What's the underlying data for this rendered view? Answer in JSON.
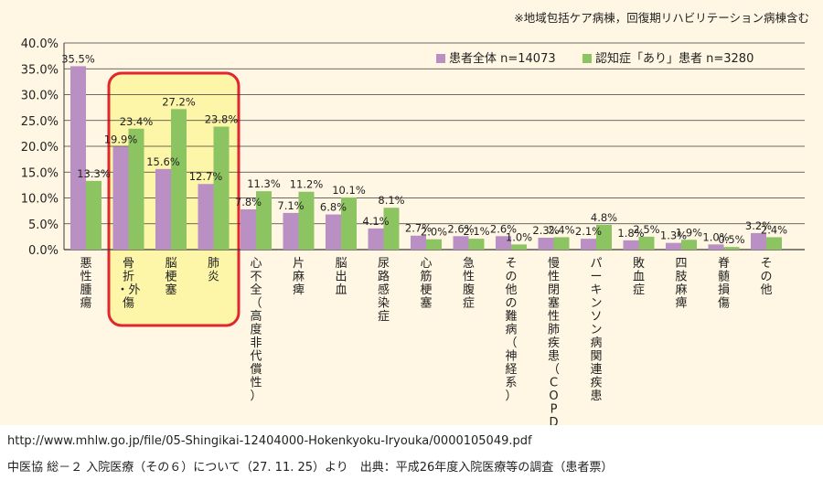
{
  "note": "※地域包括ケア病棟，回復期リハビリテーション病棟含む",
  "footer": {
    "url": "http://www.mhlw.go.jp/file/05-Shingikai-12404000-Hokenkyoku-Iryouka/0000105049.pdf",
    "source": "中医協 総－２ 入院医療（その６）について（27. 11. 25）より　出典：平成26年度入院医療等の調査（患者票）"
  },
  "colors": {
    "series_all": "#b98fc4",
    "series_dementia": "#8dc462",
    "panel_bg": "#fff7e3",
    "highlight_fill": "#fdf5a8",
    "highlight_border": "#e2262d",
    "grid": "#3a3a3a"
  },
  "chart_data": {
    "type": "bar",
    "categories": [
      "悪性腫瘍",
      "骨折・外傷",
      "脳梗塞",
      "肺炎",
      "心不全（高度非代償性）",
      "片麻痺",
      "脳出血",
      "尿路感染症",
      "心筋梗塞",
      "急性腹症",
      "その他の難病（神経系）",
      "慢性閉塞性肺疾患（COPD）",
      "パーキンソン病関連疾患",
      "敗血症",
      "四肢麻痺",
      "脊髄損傷",
      "その他"
    ],
    "category_lines": [
      [
        "悪",
        "性",
        "腫",
        "瘍"
      ],
      [
        "骨",
        "折",
        "・外",
        "傷"
      ],
      [
        "脳",
        "梗",
        "塞"
      ],
      [
        "肺",
        "炎"
      ],
      [
        "心",
        "不",
        "全",
        "（",
        "高",
        "度",
        "非",
        "代",
        "償",
        "性",
        "）"
      ],
      [
        "片",
        "麻",
        "痺"
      ],
      [
        "脳",
        "出",
        "血"
      ],
      [
        "尿",
        "路",
        "感",
        "染",
        "症"
      ],
      [
        "心",
        "筋",
        "梗",
        "塞"
      ],
      [
        "急",
        "性",
        "腹",
        "症"
      ],
      [
        "そ",
        "の",
        "他",
        "の",
        "難",
        "病",
        "（",
        "神",
        "経",
        "系",
        "）"
      ],
      [
        "慢",
        "性",
        "閉",
        "塞",
        "性",
        "肺",
        "疾",
        "患",
        "（",
        "C",
        "O",
        "P",
        "D",
        "）"
      ],
      [
        "パ",
        "ー",
        "キ",
        "ン",
        "ソ",
        "ン",
        "病",
        "関",
        "連",
        "疾",
        "患"
      ],
      [
        "敗",
        "血",
        "症"
      ],
      [
        "四",
        "肢",
        "麻",
        "痺"
      ],
      [
        "脊",
        "髄",
        "損",
        "傷"
      ],
      [
        "そ",
        "の",
        "他"
      ]
    ],
    "series": [
      {
        "name": "患者全体 n=14073",
        "values": [
          35.5,
          19.9,
          15.6,
          12.7,
          7.8,
          7.1,
          6.8,
          4.1,
          2.7,
          2.6,
          2.6,
          2.3,
          2.1,
          1.8,
          1.3,
          1.0,
          3.2
        ],
        "labels": [
          "35.5%",
          "19.9%",
          "15.6%",
          "12.7%",
          "7.8%",
          "7.1%",
          "6.8%",
          "4.1%",
          "2.7%",
          "2.6%",
          "2.6%",
          "2.3%",
          "2.1%",
          "1.8%",
          "1.3%",
          "1.0%",
          "3.2%"
        ]
      },
      {
        "name": "認知症「あり」患者 n=3280",
        "values": [
          13.3,
          23.4,
          27.2,
          23.8,
          11.3,
          11.2,
          10.1,
          8.1,
          2.0,
          2.1,
          1.0,
          2.4,
          4.8,
          2.5,
          1.9,
          0.5,
          2.4
        ],
        "labels": [
          "13.3%",
          "23.4%",
          "27.2%",
          "23.8%",
          "11.3%",
          "11.2%",
          "10.1%",
          "8.1%",
          "2.0%",
          "2.1%",
          "1.0%",
          "2.4%",
          "4.8%",
          "2.5%",
          "1.9%",
          "0.5%",
          "2.4%"
        ]
      }
    ],
    "ylim": [
      0,
      40
    ],
    "yticks": [
      "0.0%",
      "5.0%",
      "10.0%",
      "15.0%",
      "20.0%",
      "25.0%",
      "30.0%",
      "35.0%",
      "40.0%"
    ],
    "grid": true,
    "legend_position": "top-right",
    "highlighted_categories": [
      1,
      2,
      3
    ]
  }
}
